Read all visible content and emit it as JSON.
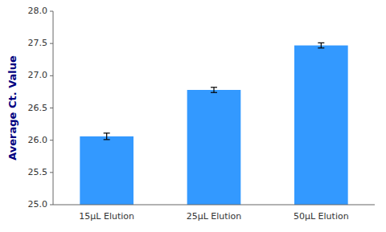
{
  "chart_data": {
    "type": "bar",
    "categories": [
      "15μL Elution",
      "25μL Elution",
      "50μL Elution"
    ],
    "values": [
      26.06,
      26.78,
      27.47
    ],
    "errors": [
      0.05,
      0.04,
      0.04
    ],
    "color": "#3399FF",
    "ylabel": "Average Ct. Value",
    "ylim": [
      25.0,
      28.0
    ],
    "yticks": [
      {
        "value": 25,
        "label": "25.0"
      },
      25.5,
      {
        "value": 26,
        "label": "26.0"
      },
      26.5,
      {
        "value": 27,
        "label": "27.0"
      },
      27.5,
      {
        "value": 28,
        "label": "28.0"
      }
    ],
    "grid": false
  }
}
